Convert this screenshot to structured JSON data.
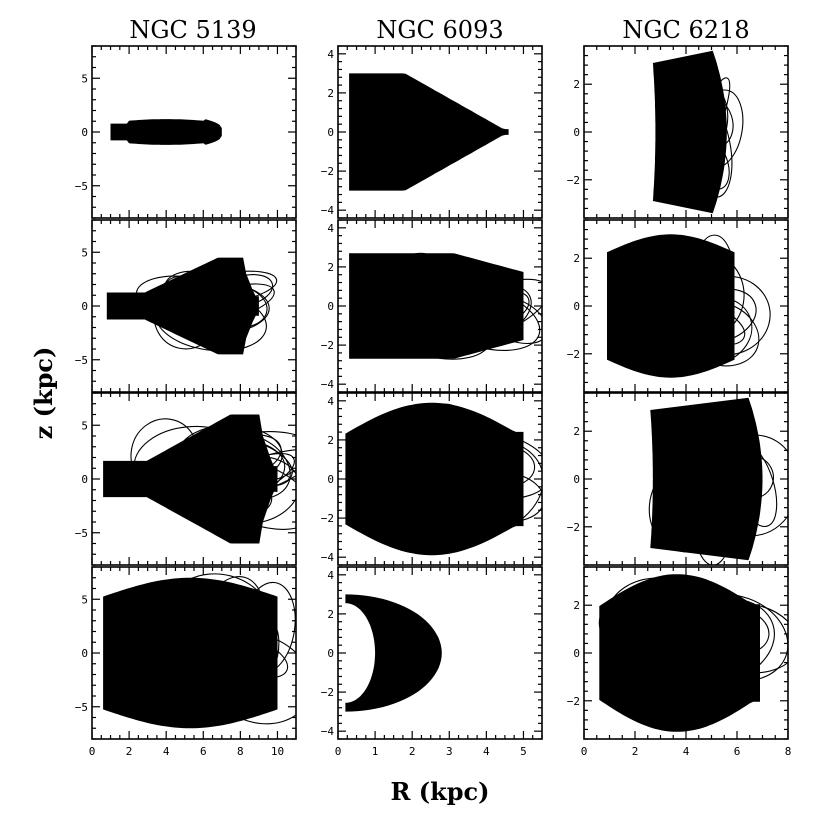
{
  "chart_data": {
    "type": "scatter",
    "title": "",
    "xlabel": "R (kpc)",
    "ylabel": "z (kpc)",
    "columns": [
      {
        "name": "NGC 5139",
        "xlim": [
          0,
          11
        ],
        "ylim": [
          -8,
          8
        ],
        "xticks": [
          0,
          2,
          4,
          6,
          8,
          10
        ],
        "yticks": [
          -5,
          0,
          5
        ]
      },
      {
        "name": "NGC 6093",
        "xlim": [
          0,
          5.5
        ],
        "ylim": [
          -4.4,
          4.4
        ],
        "xticks": [
          0,
          1,
          2,
          3,
          4,
          5
        ],
        "yticks": [
          -4,
          -2,
          0,
          2,
          4
        ]
      },
      {
        "name": "NGC 6218",
        "xlim": [
          0,
          8
        ],
        "ylim": [
          -3.6,
          3.6
        ],
        "xticks": [
          0,
          2,
          4,
          6,
          8
        ],
        "yticks": [
          -2,
          0,
          2
        ]
      }
    ],
    "panels": [
      [
        {
          "r_range": [
            1.0,
            7.0
          ],
          "z_max": 1.2,
          "shape": "bar"
        },
        {
          "r_range": [
            0.8,
            9.0
          ],
          "z_max": 4.5,
          "shape": "flare"
        },
        {
          "r_range": [
            0.6,
            10.0
          ],
          "z_max": 6.0,
          "shape": "flare"
        },
        {
          "r_range": [
            0.6,
            10.0
          ],
          "z_max": 7.0,
          "shape": "box"
        }
      ],
      [
        {
          "r_range": [
            0.3,
            4.6
          ],
          "z_max": 3.0,
          "shape": "wedge"
        },
        {
          "r_range": [
            0.3,
            5.0
          ],
          "z_max": 3.0,
          "shape": "ragged"
        },
        {
          "r_range": [
            0.2,
            5.0
          ],
          "z_max": 3.9,
          "shape": "round"
        },
        {
          "r_range": [
            0.2,
            2.8
          ],
          "z_max": 3.0,
          "shape": "crescent"
        }
      ],
      [
        {
          "r_range": [
            2.7,
            5.6
          ],
          "z_max": 3.4,
          "shape": "arc"
        },
        {
          "r_range": [
            0.9,
            5.9
          ],
          "z_max": 3.0,
          "shape": "box"
        },
        {
          "r_range": [
            2.6,
            7.0
          ],
          "z_max": 3.4,
          "shape": "arc"
        },
        {
          "r_range": [
            0.6,
            6.9
          ],
          "z_max": 3.3,
          "shape": "round"
        }
      ]
    ],
    "grid": false,
    "legend": "none"
  }
}
